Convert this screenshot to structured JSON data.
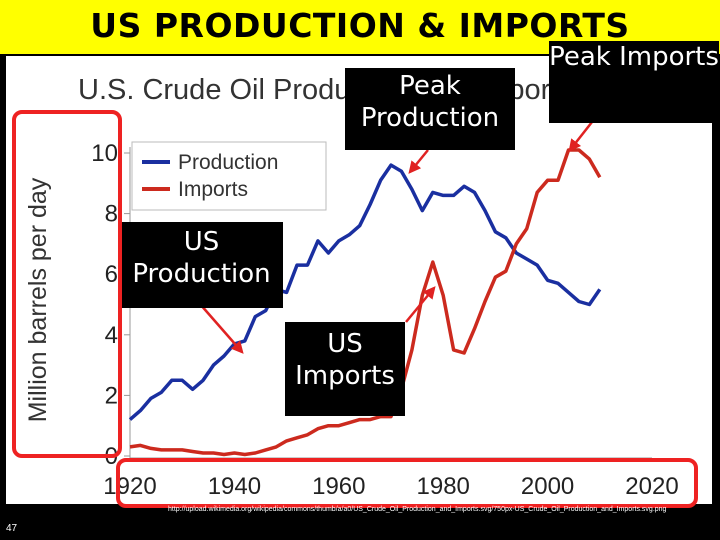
{
  "slide": {
    "title": "US PRODUCTION & IMPORTS",
    "slide_number": "47",
    "source": "http://upload.wikimedia.org/wikipedia/commons/thumb/a/a0/US_Crude_Oil_Production_and_Imports.svg/750px-US_Crude_Oil_Production_and_Imports.svg.png"
  },
  "callouts": {
    "peak_production": "Peak Production",
    "peak_imports": "Peak Imports",
    "us_production": "US Production",
    "us_imports": "US Imports"
  },
  "chart_data": {
    "type": "line",
    "title": "U.S. Crude Oil Production and Imports",
    "ylabel": "Million barrels per day",
    "xlabel": "",
    "xlim": [
      1920,
      2020
    ],
    "ylim": [
      0,
      10
    ],
    "xticks": [
      1920,
      1940,
      1960,
      1980,
      2000,
      2020
    ],
    "yticks": [
      0,
      2,
      4,
      6,
      8,
      10
    ],
    "legend": "top-left",
    "grid": false,
    "series": [
      {
        "name": "Production",
        "color": "#1a2fa0",
        "x": [
          1920,
          1922,
          1924,
          1926,
          1928,
          1930,
          1932,
          1934,
          1936,
          1938,
          1940,
          1942,
          1944,
          1946,
          1948,
          1950,
          1952,
          1954,
          1956,
          1958,
          1960,
          1962,
          1964,
          1966,
          1968,
          1970,
          1972,
          1974,
          1976,
          1978,
          1980,
          1982,
          1984,
          1986,
          1988,
          1990,
          1992,
          1994,
          1996,
          1998,
          2000,
          2002,
          2004,
          2006,
          2008,
          2010
        ],
        "y": [
          1.2,
          1.5,
          1.9,
          2.1,
          2.5,
          2.5,
          2.2,
          2.5,
          3.0,
          3.3,
          3.7,
          3.8,
          4.6,
          4.8,
          5.5,
          5.4,
          6.3,
          6.3,
          7.1,
          6.7,
          7.1,
          7.3,
          7.6,
          8.3,
          9.1,
          9.6,
          9.4,
          8.8,
          8.1,
          8.7,
          8.6,
          8.6,
          8.9,
          8.7,
          8.1,
          7.4,
          7.2,
          6.7,
          6.5,
          6.3,
          5.8,
          5.7,
          5.4,
          5.1,
          5.0,
          5.5
        ]
      },
      {
        "name": "Imports",
        "color": "#cc2a1e",
        "x": [
          1920,
          1922,
          1924,
          1926,
          1928,
          1930,
          1932,
          1934,
          1936,
          1938,
          1940,
          1942,
          1944,
          1946,
          1948,
          1950,
          1952,
          1954,
          1956,
          1958,
          1960,
          1962,
          1964,
          1966,
          1968,
          1970,
          1972,
          1974,
          1976,
          1978,
          1980,
          1982,
          1984,
          1986,
          1988,
          1990,
          1992,
          1994,
          1996,
          1998,
          2000,
          2002,
          2004,
          2006,
          2008,
          2010
        ],
        "y": [
          0.3,
          0.35,
          0.25,
          0.2,
          0.2,
          0.2,
          0.15,
          0.1,
          0.1,
          0.05,
          0.1,
          0.05,
          0.1,
          0.2,
          0.3,
          0.5,
          0.6,
          0.7,
          0.9,
          1.0,
          1.0,
          1.1,
          1.2,
          1.2,
          1.3,
          1.3,
          2.2,
          3.5,
          5.3,
          6.4,
          5.3,
          3.5,
          3.4,
          4.2,
          5.1,
          5.9,
          6.1,
          7.0,
          7.5,
          8.7,
          9.1,
          9.1,
          10.1,
          10.1,
          9.8,
          9.2
        ]
      }
    ]
  }
}
